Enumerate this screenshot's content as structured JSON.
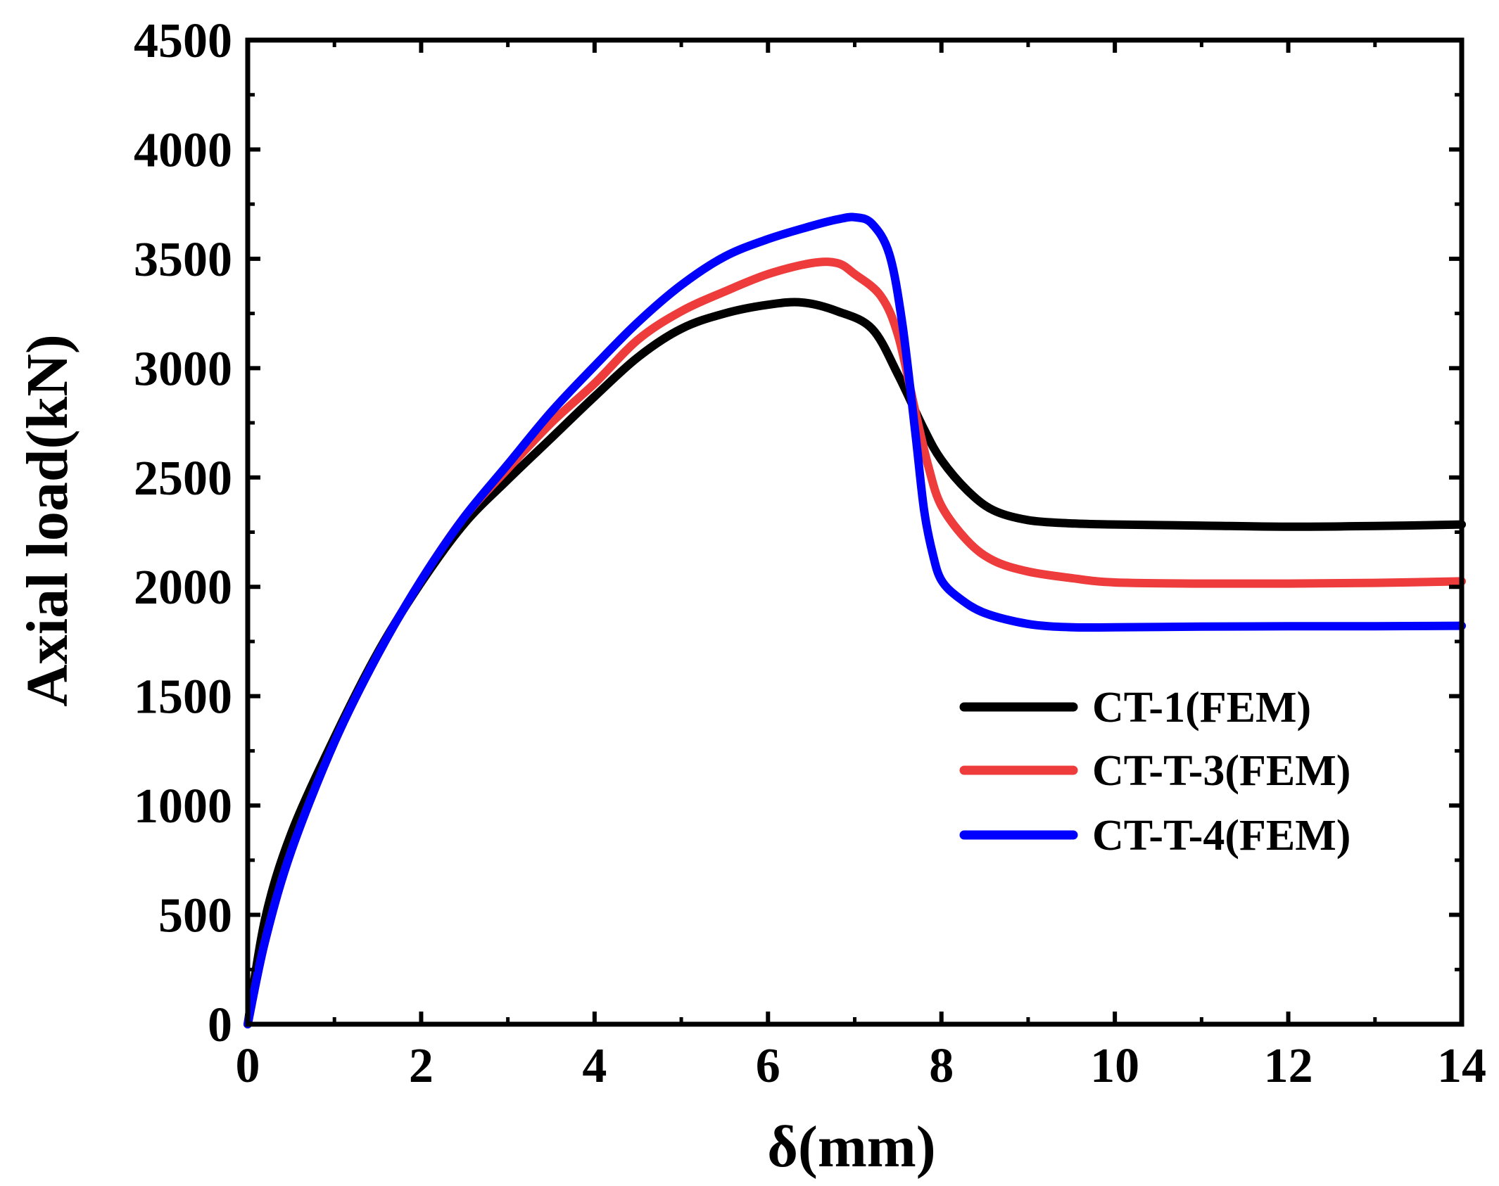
{
  "chart_data": {
    "type": "line",
    "title": "",
    "xlabel": "δ(mm)",
    "ylabel": "Axial load(kN)",
    "xlim": [
      0,
      14
    ],
    "ylim": [
      0,
      4500
    ],
    "xticks": [
      0,
      2,
      4,
      6,
      8,
      10,
      12,
      14
    ],
    "yticks": [
      0,
      500,
      1000,
      1500,
      2000,
      2500,
      3000,
      3500,
      4000,
      4500
    ],
    "xtick_labels": [
      "0",
      "2",
      "4",
      "6",
      "8",
      "10",
      "12",
      "14"
    ],
    "ytick_labels": [
      "0",
      "500",
      "1000",
      "1500",
      "2000",
      "2500",
      "3000",
      "3500",
      "4000",
      "4500"
    ],
    "legend_position": "right",
    "grid": false,
    "series": [
      {
        "name": "CT-1(FEM)",
        "color": "#000000",
        "x": [
          0,
          0.2,
          0.5,
          1.0,
          1.5,
          2.0,
          2.5,
          3.0,
          3.5,
          4.0,
          4.5,
          5.0,
          5.5,
          6.0,
          6.4,
          6.8,
          7.2,
          7.5,
          7.8,
          8.0,
          8.3,
          8.6,
          9.0,
          9.5,
          10.0,
          11.0,
          12.0,
          13.0,
          14.0
        ],
        "y": [
          0,
          480,
          870,
          1310,
          1700,
          2020,
          2290,
          2490,
          2680,
          2870,
          3050,
          3180,
          3250,
          3290,
          3300,
          3260,
          3180,
          2970,
          2720,
          2580,
          2440,
          2350,
          2305,
          2290,
          2285,
          2280,
          2275,
          2278,
          2285
        ]
      },
      {
        "name": "CT-T-3(FEM)",
        "color": "#ee3b3b",
        "x": [
          0,
          0.2,
          0.5,
          1.0,
          1.5,
          2.0,
          2.5,
          3.0,
          3.5,
          4.0,
          4.5,
          5.0,
          5.5,
          6.0,
          6.5,
          6.8,
          7.0,
          7.3,
          7.5,
          7.7,
          7.85,
          8.0,
          8.3,
          8.6,
          9.0,
          9.5,
          10.0,
          11.0,
          12.0,
          13.0,
          14.0
        ],
        "y": [
          0,
          380,
          790,
          1290,
          1690,
          2030,
          2320,
          2540,
          2750,
          2930,
          3130,
          3260,
          3350,
          3430,
          3480,
          3480,
          3430,
          3330,
          3150,
          2800,
          2550,
          2370,
          2210,
          2120,
          2070,
          2040,
          2020,
          2015,
          2015,
          2018,
          2025
        ]
      },
      {
        "name": "CT-T-4(FEM)",
        "color": "#0000ff",
        "x": [
          0,
          0.2,
          0.5,
          1.0,
          1.5,
          2.0,
          2.5,
          3.0,
          3.5,
          4.0,
          4.5,
          5.0,
          5.5,
          6.0,
          6.5,
          6.8,
          7.0,
          7.2,
          7.4,
          7.55,
          7.7,
          7.8,
          7.9,
          8.0,
          8.2,
          8.5,
          9.0,
          9.5,
          10.0,
          11.0,
          12.0,
          13.0,
          14.0
        ],
        "y": [
          0,
          380,
          790,
          1290,
          1690,
          2030,
          2320,
          2560,
          2800,
          3010,
          3210,
          3380,
          3510,
          3590,
          3650,
          3680,
          3690,
          3660,
          3520,
          3200,
          2700,
          2350,
          2150,
          2030,
          1950,
          1880,
          1830,
          1815,
          1815,
          1818,
          1820,
          1820,
          1822
        ]
      }
    ]
  }
}
